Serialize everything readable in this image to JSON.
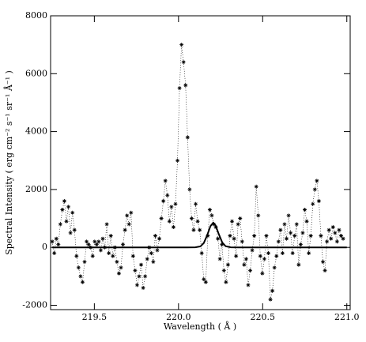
{
  "chart_data": {
    "type": "scatter",
    "x_label": "Wavelength ( Å )",
    "y_label": "Spectral Intensity ( erg cm⁻² s⁻¹ sr⁻¹ Å⁻¹ )",
    "xlim": [
      219.24,
      221.02
    ],
    "ylim": [
      -2150,
      8000
    ],
    "xticks": [
      219.5,
      {
        "value": 220,
        "label": "220.0"
      },
      220.5,
      {
        "value": 221,
        "label": "221.0"
      }
    ],
    "yticks": [
      -2000,
      0,
      2000,
      4000,
      6000,
      8000
    ],
    "series": [
      {
        "style": "points",
        "color": "#000000",
        "x": [
          219.25,
          219.262,
          219.274,
          219.286,
          219.298,
          219.31,
          219.322,
          219.334,
          219.346,
          219.358,
          219.37,
          219.382,
          219.394,
          219.406,
          219.418,
          219.43,
          219.442,
          219.454,
          219.466,
          219.478,
          219.49,
          219.502,
          219.514,
          219.526,
          219.538,
          219.55,
          219.562,
          219.574,
          219.586,
          219.598,
          219.61,
          219.622,
          219.634,
          219.646,
          219.658,
          219.67,
          219.682,
          219.694,
          219.706,
          219.718,
          219.73,
          219.742,
          219.754,
          219.766,
          219.778,
          219.79,
          219.802,
          219.814,
          219.826,
          219.838,
          219.85,
          219.862,
          219.874,
          219.886,
          219.898,
          219.91,
          219.922,
          219.934,
          219.946,
          219.958,
          219.97,
          219.982,
          219.994,
          220.006,
          220.018,
          220.03,
          220.042,
          220.054,
          220.066,
          220.078,
          220.09,
          220.102,
          220.114,
          220.126,
          220.138,
          220.15,
          220.162,
          220.174,
          220.186,
          220.198,
          220.21,
          220.222,
          220.234,
          220.246,
          220.258,
          220.27,
          220.282,
          220.294,
          220.306,
          220.318,
          220.33,
          220.342,
          220.354,
          220.366,
          220.378,
          220.39,
          220.402,
          220.414,
          220.426,
          220.438,
          220.45,
          220.462,
          220.474,
          220.486,
          220.498,
          220.51,
          220.522,
          220.534,
          220.546,
          220.558,
          220.57,
          220.582,
          220.594,
          220.606,
          220.618,
          220.63,
          220.642,
          220.654,
          220.666,
          220.678,
          220.69,
          220.702,
          220.714,
          220.726,
          220.738,
          220.75,
          220.762,
          220.774,
          220.786,
          220.798,
          220.81,
          220.822,
          220.834,
          220.846,
          220.858,
          220.87,
          220.882,
          220.894,
          220.906,
          220.918,
          220.93,
          220.942,
          220.954,
          220.966,
          220.978
        ],
        "values": [
          200,
          -200,
          300,
          100,
          800,
          1300,
          1600,
          900,
          1400,
          500,
          1200,
          600,
          -300,
          -700,
          -1000,
          -1200,
          -500,
          200,
          100,
          0,
          -300,
          200,
          100,
          200,
          -100,
          300,
          0,
          800,
          -200,
          400,
          -300,
          0,
          -500,
          -900,
          -700,
          100,
          600,
          1100,
          800,
          1200,
          -300,
          -800,
          -1300,
          -1000,
          -600,
          -1400,
          -1000,
          -400,
          0,
          -200,
          -500,
          400,
          -100,
          300,
          1000,
          1600,
          2300,
          1800,
          900,
          1400,
          700,
          1500,
          3000,
          5500,
          7000,
          6400,
          5600,
          3800,
          2000,
          1000,
          600,
          1500,
          900,
          600,
          -200,
          -1100,
          -1200,
          400,
          1300,
          1100,
          800,
          700,
          300,
          -400,
          100,
          -800,
          -1200,
          -600,
          400,
          900,
          300,
          -300,
          800,
          1000,
          200,
          -600,
          -400,
          -1300,
          -800,
          -100,
          400,
          2100,
          1100,
          -300,
          -900,
          -400,
          400,
          -200,
          -1800,
          -1500,
          -700,
          -300,
          200,
          600,
          -200,
          800,
          300,
          1100,
          500,
          -200,
          400,
          800,
          -600,
          100,
          500,
          1300,
          900,
          -200,
          400,
          1500,
          2000,
          2300,
          1600,
          400,
          -500,
          -800,
          200,
          600,
          300,
          700,
          500,
          200,
          600,
          400,
          300
        ]
      },
      {
        "style": "line",
        "color": "#000000",
        "x": [
          219.25,
          220.05,
          220.1,
          220.13,
          220.15,
          220.17,
          220.19,
          220.206,
          220.22,
          220.24,
          220.26,
          220.28,
          220.31,
          220.36,
          221.0
        ],
        "values": [
          0,
          0,
          2,
          34,
          149,
          415,
          737,
          850,
          762,
          447,
          168,
          40,
          2,
          0,
          0
        ]
      }
    ]
  }
}
